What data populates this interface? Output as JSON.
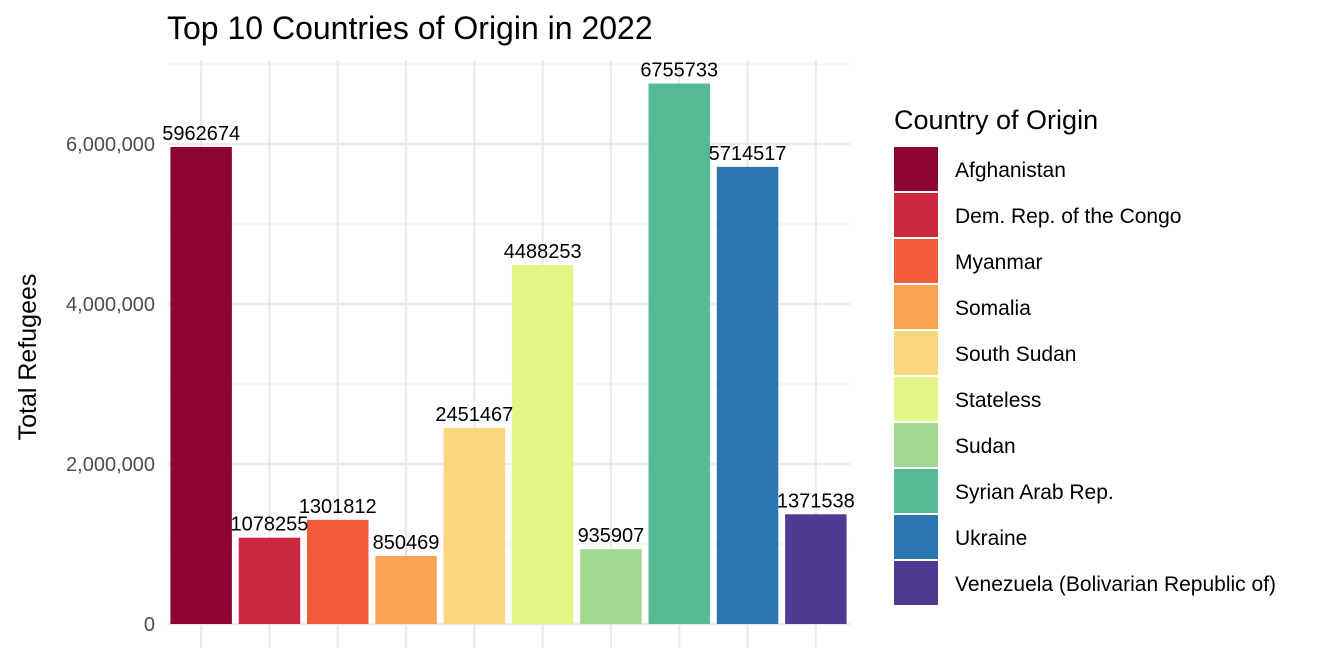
{
  "chart_data": {
    "type": "bar",
    "title": "Top 10 Countries of Origin in 2022",
    "xlabel": "",
    "ylabel": "Total Refugees",
    "ylim": [
      0,
      7050000
    ],
    "y_ticks": [
      0,
      2000000,
      4000000,
      6000000
    ],
    "y_tick_labels": [
      "0",
      "2,000,000",
      "4,000,000",
      "6,000,000"
    ],
    "grid": true,
    "legend_title": "Country of Origin",
    "legend_position": "right",
    "categories": [
      "Afghanistan",
      "Dem. Rep. of the Congo",
      "Myanmar",
      "Somalia",
      "South Sudan",
      "Stateless",
      "Sudan",
      "Syrian Arab Rep.",
      "Ukraine",
      "Venezuela (Bolivarian Republic of)"
    ],
    "values": [
      5962674,
      1078255,
      1301812,
      850469,
      2451467,
      4488253,
      935907,
      6755733,
      5714517,
      1371538
    ],
    "data_labels": [
      "5962674",
      "1078255",
      "1301812",
      "850469",
      "2451467",
      "4488253",
      "935907",
      "6755733",
      "5714517",
      "1371538"
    ],
    "colors": [
      "#8e0133",
      "#c9283e",
      "#f05b38",
      "#fba253",
      "#fcd77d",
      "#e2f587",
      "#a0d990",
      "#56ba94",
      "#2b75b0",
      "#4e3b91"
    ]
  }
}
